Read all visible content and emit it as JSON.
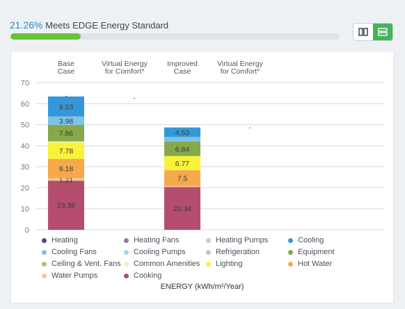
{
  "header": {
    "percent": "21.26%",
    "text": "Meets EDGE Energy Standard",
    "progress": 0.2126
  },
  "toggle": {
    "active": "rows"
  },
  "chart_data": {
    "type": "bar",
    "stacked": true,
    "categories": [
      "Base Case",
      "Virtual Energy for Comfort*",
      "Improved Case",
      "Virtual Energy for Comfort*"
    ],
    "category_lines": [
      [
        "Base",
        "Case"
      ],
      [
        "Virtual Energy",
        "for Comfort*"
      ],
      [
        "Improved",
        "Case"
      ],
      [
        "Virtual Energy",
        "for Comfort*"
      ]
    ],
    "ylim": [
      0,
      70
    ],
    "yticks": [
      0,
      10,
      20,
      30,
      40,
      50,
      60,
      70
    ],
    "grid": true,
    "xlabel": "ENERGY (kWh/m²/Year)",
    "legend_position": "bottom",
    "series": [
      {
        "name": "Cooking",
        "color": "#b54d6e",
        "values": [
          23.38,
          0,
          20.34,
          0
        ],
        "labels": [
          "23.38",
          "",
          "20.34",
          ""
        ]
      },
      {
        "name": "Water Pumps",
        "color": "#f7c59b",
        "values": [
          1.21,
          0,
          0.5,
          0
        ],
        "labels": [
          "1.21",
          "",
          "",
          ""
        ]
      },
      {
        "name": "Hot Water",
        "color": "#f5a94a",
        "values": [
          9.18,
          0,
          7.5,
          0
        ],
        "labels": [
          "9.18",
          "",
          "7.5",
          ""
        ]
      },
      {
        "name": "Lighting",
        "color": "#f9f13a",
        "values": [
          7.78,
          0,
          6.77,
          0
        ],
        "labels": [
          "7.78",
          "",
          "6.77",
          ""
        ]
      },
      {
        "name": "Common Amenities",
        "color": "#eaf5c6",
        "values": [
          0.5,
          0,
          0,
          0
        ],
        "labels": [
          "",
          "",
          "",
          ""
        ]
      },
      {
        "name": "Ceiling & Vent. Fans",
        "color": "#a3c76c",
        "values": [
          0,
          0,
          0,
          0
        ],
        "labels": [
          "",
          "",
          "",
          ""
        ]
      },
      {
        "name": "Equipment",
        "color": "#86a84a",
        "values": [
          7.86,
          0,
          6.84,
          0
        ],
        "labels": [
          "7.86",
          "",
          "6.84",
          ""
        ]
      },
      {
        "name": "Refrigeration",
        "color": "#c3c3c3",
        "values": [
          0,
          0,
          0,
          0
        ],
        "labels": [
          "",
          "",
          "",
          ""
        ]
      },
      {
        "name": "Cooling Pumps",
        "color": "#a9d6f0",
        "values": [
          0,
          0,
          0,
          0
        ],
        "labels": [
          "",
          "",
          "",
          ""
        ]
      },
      {
        "name": "Cooling Fans",
        "color": "#7cc3ea",
        "values": [
          3.98,
          0,
          2.2,
          0
        ],
        "labels": [
          "3.98",
          "",
          "",
          ""
        ]
      },
      {
        "name": "Cooling",
        "color": "#3498d8",
        "values": [
          9.53,
          0,
          4.53,
          0
        ],
        "labels": [
          "9.53",
          "",
          "4.53",
          ""
        ]
      },
      {
        "name": "Heating Pumps",
        "color": "#cfc8dc",
        "values": [
          0,
          0,
          0,
          0
        ],
        "labels": [
          "",
          "",
          "",
          ""
        ]
      },
      {
        "name": "Heating Fans",
        "color": "#8a7fa8",
        "values": [
          0,
          0,
          0,
          0
        ],
        "labels": [
          "",
          "",
          "",
          ""
        ]
      },
      {
        "name": "Heating",
        "color": "#4d4f78",
        "values": [
          0,
          0,
          0,
          0
        ],
        "labels": [
          "",
          "",
          "",
          ""
        ]
      }
    ],
    "annotations": [
      {
        "category": 0,
        "value": 63.5,
        "text": "-"
      },
      {
        "category": 1,
        "value": 62.5,
        "text": "-"
      },
      {
        "category": 3,
        "value": 48.5,
        "text": "-"
      }
    ],
    "legend_order": [
      "Heating",
      "Heating Fans",
      "Heating Pumps",
      "Cooling",
      "Cooling Fans",
      "Cooling Pumps",
      "Refrigeration",
      "Equipment",
      "Ceiling & Vent. Fans",
      "Common Amenities",
      "Lighting",
      "Hot Water",
      "Water Pumps",
      "Cooking"
    ]
  }
}
